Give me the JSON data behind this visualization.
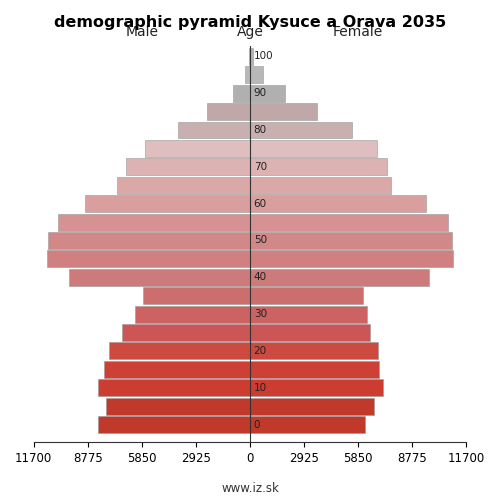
{
  "title": "demographic pyramid Kysuce a Orava 2035",
  "label_left": "Male",
  "label_right": "Female",
  "label_center": "Age",
  "age_groups": [
    0,
    5,
    10,
    15,
    20,
    25,
    30,
    35,
    40,
    45,
    50,
    55,
    60,
    65,
    70,
    75,
    80,
    85,
    90,
    95,
    100
  ],
  "male_values": [
    8200,
    7800,
    8200,
    7900,
    7600,
    6900,
    6200,
    5800,
    9800,
    11000,
    10900,
    10400,
    8900,
    7200,
    6700,
    5700,
    3900,
    2300,
    900,
    270,
    50
  ],
  "female_values": [
    6200,
    6700,
    7200,
    7000,
    6900,
    6500,
    6300,
    6100,
    9700,
    11000,
    10900,
    10700,
    9500,
    7600,
    7400,
    6850,
    5500,
    3600,
    1900,
    720,
    180
  ],
  "colors": [
    "#c0392b",
    "#c0392b",
    "#cd3c30",
    "#cd4035",
    "#cd4a40",
    "#cc5555",
    "#cc6262",
    "#cc6e6e",
    "#cc7a7a",
    "#d08080",
    "#d38888",
    "#d69292",
    "#d99e9e",
    "#dba8a8",
    "#ddb2b2",
    "#debebe",
    "#c8b0b0",
    "#c0a8a8",
    "#b0b0b0",
    "#b8b8b8",
    "#b4b4b4"
  ],
  "xlim": 11700,
  "xtick_vals": [
    0,
    2925,
    5850,
    8775,
    11700
  ],
  "ytick_vals": [
    0,
    10,
    20,
    30,
    40,
    50,
    60,
    70,
    80,
    90,
    100
  ],
  "bar_height": 4.6,
  "background_color": "#ffffff",
  "website": "www.iz.sk"
}
